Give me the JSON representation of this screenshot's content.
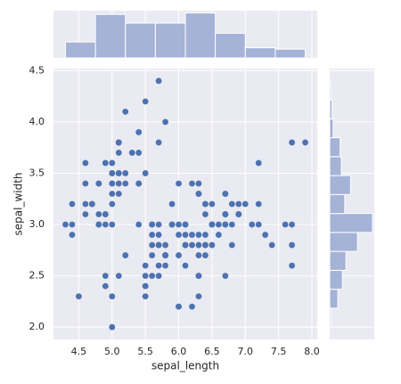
{
  "chart_data": [
    {
      "type": "scatter",
      "xlabel": "sepal_length",
      "ylabel": "sepal_width",
      "color": "#4c72b0",
      "grid": true,
      "xlim": [
        4.12,
        8.08
      ],
      "ylim": [
        1.88,
        4.52
      ],
      "xticks": [
        4.5,
        {
          "value": 5,
          "label": "5.0"
        },
        5.5,
        {
          "value": 6,
          "label": "6.0"
        },
        6.5,
        {
          "value": 7,
          "label": "7.0"
        },
        7.5,
        {
          "value": 8,
          "label": "8.0"
        }
      ],
      "yticks": [
        {
          "value": 2,
          "label": "2.0"
        },
        2.5,
        {
          "value": 3,
          "label": "3.0"
        },
        3.5,
        {
          "value": 4,
          "label": "4.0"
        },
        4.5
      ],
      "x": [
        5.1,
        4.9,
        4.7,
        4.6,
        5.0,
        5.4,
        4.6,
        5.0,
        4.4,
        4.9,
        5.4,
        4.8,
        4.8,
        4.3,
        5.8,
        5.7,
        5.4,
        5.1,
        5.7,
        5.1,
        5.4,
        5.1,
        4.6,
        5.1,
        4.8,
        5.0,
        5.0,
        5.2,
        5.2,
        4.7,
        4.8,
        5.4,
        5.2,
        5.5,
        4.9,
        5.0,
        5.5,
        4.9,
        4.4,
        5.1,
        5.0,
        4.5,
        4.4,
        5.0,
        5.1,
        4.8,
        5.1,
        4.6,
        5.3,
        5.0,
        7.0,
        6.4,
        6.9,
        5.5,
        6.5,
        5.7,
        6.3,
        4.9,
        6.6,
        5.2,
        5.0,
        5.9,
        6.0,
        6.1,
        5.6,
        6.7,
        5.6,
        5.8,
        6.2,
        5.6,
        5.9,
        6.1,
        6.3,
        6.1,
        6.4,
        6.6,
        6.8,
        6.7,
        6.0,
        5.7,
        5.5,
        5.5,
        5.8,
        6.0,
        5.4,
        6.0,
        6.7,
        6.3,
        5.6,
        5.5,
        5.5,
        6.1,
        5.8,
        5.0,
        5.6,
        5.7,
        5.7,
        6.2,
        5.1,
        5.7,
        6.3,
        5.8,
        7.1,
        6.3,
        6.5,
        7.6,
        4.9,
        7.3,
        6.7,
        7.2,
        6.5,
        6.4,
        6.8,
        5.7,
        5.8,
        6.4,
        6.5,
        7.7,
        7.7,
        6.0,
        6.9,
        5.6,
        7.7,
        6.3,
        6.7,
        7.2,
        6.2,
        6.1,
        6.4,
        7.2,
        7.4,
        7.9,
        6.4,
        6.3,
        6.1,
        7.7,
        6.3,
        6.4,
        6.0,
        6.9,
        6.7,
        6.9,
        5.8,
        6.8,
        6.7,
        6.7,
        6.3,
        6.5,
        6.2,
        5.9
      ],
      "y": [
        3.5,
        3.0,
        3.2,
        3.1,
        3.6,
        3.9,
        3.4,
        3.4,
        2.9,
        3.1,
        3.7,
        3.4,
        3.0,
        3.0,
        4.0,
        4.4,
        3.9,
        3.5,
        3.8,
        3.8,
        3.4,
        3.7,
        3.6,
        3.3,
        3.4,
        3.0,
        3.4,
        3.5,
        3.4,
        3.2,
        3.1,
        3.4,
        4.1,
        4.2,
        3.1,
        3.2,
        3.5,
        3.6,
        3.0,
        3.4,
        3.5,
        2.3,
        3.2,
        3.5,
        3.8,
        3.0,
        3.8,
        3.2,
        3.7,
        3.3,
        3.2,
        3.2,
        3.1,
        2.3,
        2.8,
        2.8,
        3.3,
        2.4,
        2.9,
        2.7,
        2.0,
        3.0,
        2.2,
        2.9,
        2.9,
        3.1,
        3.0,
        2.7,
        2.2,
        2.5,
        3.2,
        2.8,
        2.5,
        2.8,
        2.9,
        3.0,
        2.8,
        3.0,
        2.9,
        2.6,
        2.4,
        2.4,
        2.7,
        2.7,
        3.0,
        3.4,
        3.1,
        2.3,
        3.0,
        2.5,
        2.6,
        3.0,
        2.6,
        2.3,
        2.7,
        3.0,
        2.9,
        2.9,
        2.5,
        2.8,
        3.3,
        2.7,
        3.0,
        2.9,
        3.0,
        3.0,
        2.5,
        2.9,
        2.5,
        3.6,
        3.2,
        2.7,
        3.0,
        2.5,
        2.8,
        3.2,
        3.0,
        3.8,
        2.6,
        2.2,
        3.2,
        2.8,
        2.8,
        2.7,
        3.3,
        3.2,
        2.8,
        3.0,
        2.8,
        3.0,
        2.8,
        3.8,
        2.8,
        2.8,
        2.6,
        3.0,
        3.4,
        3.1,
        3.0,
        3.1,
        3.1,
        3.1,
        2.7,
        3.2,
        3.3,
        3.0,
        2.5,
        3.0,
        3.4,
        3.0
      ]
    },
    {
      "type": "histogram",
      "orientation": "vertical",
      "color": "#a4b3d6",
      "bins": [
        4.3,
        4.75,
        5.2,
        5.65,
        6.1,
        6.55,
        7.0,
        7.45,
        7.9
      ],
      "counts": [
        11,
        30,
        24,
        24,
        31,
        17,
        7,
        6
      ],
      "ylim": [
        0,
        32.6
      ]
    },
    {
      "type": "histogram",
      "orientation": "horizontal",
      "color": "#a4b3d6",
      "bins": [
        2.0,
        2.1846,
        2.3692,
        2.5538,
        2.7385,
        2.9231,
        3.1077,
        3.2923,
        3.4769,
        3.6615,
        3.8462,
        4.0308,
        4.2154,
        4.4
      ],
      "counts": [
        1,
        7,
        11,
        14,
        24,
        37,
        13,
        18,
        10,
        9,
        3,
        2,
        1
      ],
      "xlim": [
        0,
        38.5
      ]
    }
  ]
}
